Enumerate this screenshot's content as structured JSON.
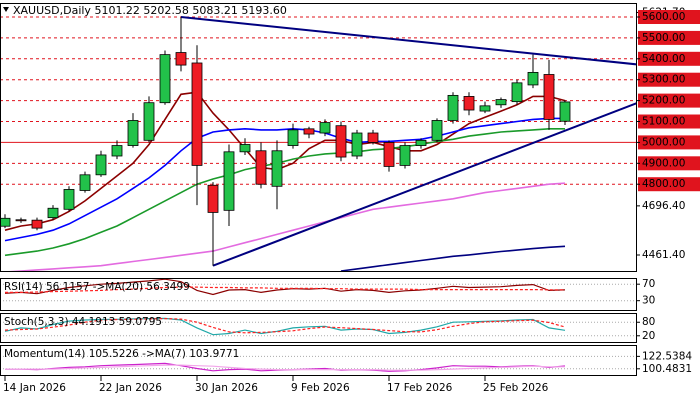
{
  "chart_data": [
    {
      "type": "candlestick",
      "title": "XAUUSD,Daily  5101.22 5202.58 5083.21 5193.60",
      "categories": [
        "14 Jan 2026",
        null,
        null,
        null,
        null,
        null,
        "22 Jan 2026",
        null,
        null,
        null,
        null,
        null,
        "30 Jan 2026",
        null,
        null,
        null,
        null,
        null,
        "9 Feb 2026",
        null,
        null,
        null,
        null,
        null,
        "17 Feb 2026",
        null,
        null,
        null,
        null,
        null,
        "25 Feb 2026",
        null,
        null,
        null,
        null,
        null
      ],
      "open": [
        4599,
        4630,
        4628,
        4640,
        4680,
        4770,
        4845,
        4935,
        4985,
        5010,
        5190,
        5430,
        5380,
        4795,
        4675,
        4955,
        4960,
        4790,
        4985,
        5065,
        5045,
        5080,
        4935,
        5045,
        5000,
        4890,
        4985,
        5010,
        5105,
        5220,
        5150,
        5180,
        5195,
        5275,
        5325,
        5101.22
      ],
      "high": [
        4656,
        4640,
        4640,
        4700,
        4790,
        4860,
        4960,
        5010,
        5140,
        5220,
        5440,
        5598,
        5465,
        4810,
        4990,
        5020,
        5000,
        5010,
        5090,
        5075,
        5110,
        5100,
        5060,
        5060,
        5010,
        5000,
        5020,
        5115,
        5240,
        5240,
        5195,
        5215,
        5300,
        5420,
        5395,
        5202.58
      ],
      "low": [
        4590,
        4615,
        4580,
        4630,
        4670,
        4760,
        4835,
        4920,
        4975,
        5000,
        5180,
        5340,
        4700,
        4410,
        4600,
        4940,
        4780,
        4680,
        4970,
        5020,
        5030,
        4910,
        4920,
        4990,
        4860,
        4875,
        4970,
        5000,
        5090,
        5130,
        5140,
        5165,
        5180,
        5260,
        5060,
        5083.21
      ],
      "close": [
        4637,
        4625,
        4590,
        4685,
        4775,
        4845,
        4940,
        4985,
        5105,
        5190,
        5420,
        5370,
        4890,
        4665,
        4955,
        4990,
        4800,
        4960,
        5060,
        5040,
        5095,
        4930,
        5045,
        5000,
        4885,
        4985,
        5010,
        5105,
        5225,
        5155,
        5175,
        5205,
        5285,
        5335,
        5110,
        5193.6
      ],
      "up_color": "#22c24a",
      "down_color": "#ee1c24",
      "series": [
        {
          "color": "#8b0000",
          "values": [
            4580,
            4600,
            4610,
            4630,
            4670,
            4720,
            4780,
            4840,
            4900,
            4990,
            5110,
            5230,
            5240,
            5140,
            5060,
            4970,
            4880,
            4870,
            4900,
            4970,
            5010,
            5010,
            4990,
            5000,
            4980,
            4960,
            4960,
            4990,
            5040,
            5090,
            5120,
            5150,
            5180,
            5220,
            5220,
            5200
          ]
        },
        {
          "color": "#0000ff",
          "values": [
            4530,
            4545,
            4560,
            4580,
            4610,
            4650,
            4690,
            4730,
            4780,
            4830,
            4890,
            4960,
            5020,
            5050,
            5060,
            5065,
            5060,
            5060,
            5065,
            5060,
            5045,
            5020,
            5000,
            5005,
            5005,
            5010,
            5015,
            5030,
            5050,
            5070,
            5080,
            5090,
            5100,
            5110,
            5115,
            5115
          ]
        },
        {
          "color": "#1a9a2a",
          "values": [
            4460,
            4470,
            4480,
            4495,
            4515,
            4540,
            4570,
            4600,
            4640,
            4680,
            4720,
            4760,
            4800,
            4825,
            4845,
            4870,
            4885,
            4900,
            4920,
            4935,
            4945,
            4950,
            4955,
            4965,
            4970,
            4980,
            4990,
            5005,
            5015,
            5030,
            5040,
            5050,
            5055,
            5060,
            5065,
            5065
          ]
        },
        {
          "color": "#e36be0",
          "values": [
            4380,
            4385,
            4390,
            4395,
            4400,
            4405,
            4410,
            4420,
            4430,
            4440,
            4450,
            4460,
            4470,
            4480,
            4500,
            4520,
            4540,
            4560,
            4580,
            4600,
            4620,
            4640,
            4660,
            4680,
            4690,
            4700,
            4710,
            4720,
            4730,
            4745,
            4760,
            4770,
            4780,
            4790,
            4800,
            4805
          ]
        },
        {
          "color": "#000080",
          "values": [
            null,
            null,
            null,
            null,
            null,
            null,
            null,
            null,
            null,
            null,
            null,
            null,
            null,
            null,
            null,
            null,
            null,
            null,
            null,
            null,
            null,
            4385,
            4395,
            4405,
            4415,
            4425,
            4435,
            4445,
            4455,
            4462,
            4470,
            4478,
            4485,
            4492,
            4498,
            4503
          ]
        }
      ],
      "trendlines": [
        {
          "color": "#000080",
          "points": [
            [
              11,
              5600
            ],
            [
              39.9,
              5370
            ]
          ]
        },
        {
          "color": "#000080",
          "points": [
            [
              13,
              4410
            ],
            [
              39.9,
              5200
            ]
          ]
        }
      ],
      "levels": [
        {
          "value": 5600,
          "style": "dashed"
        },
        {
          "value": 5500,
          "style": "dashed"
        },
        {
          "value": 5400,
          "style": "dashed"
        },
        {
          "value": 5300,
          "style": "dashed"
        },
        {
          "value": 5200,
          "style": "dashed"
        },
        {
          "value": 5100,
          "style": "dashed"
        },
        {
          "value": 5000,
          "style": "solid"
        },
        {
          "value": 4900,
          "style": "dashed"
        },
        {
          "value": 4800,
          "style": "dashed"
        }
      ],
      "level_color": "#e0141e",
      "ylim": [
        4380,
        5667
      ],
      "yticks": [
        {
          "value": 5621.7,
          "label": "5621.70"
        },
        {
          "value": 5600,
          "label": "5600.00"
        },
        {
          "value": 5500,
          "label": "5500.00"
        },
        {
          "value": 5400,
          "label": "5400.00"
        },
        {
          "value": 5300,
          "label": "5300.00"
        },
        {
          "value": 5200,
          "label": "5200.00"
        },
        {
          "value": 5100,
          "label": "5100.00"
        },
        {
          "value": 5000,
          "label": "5000.00"
        },
        {
          "value": 4900,
          "label": "4900.00"
        },
        {
          "value": 4800,
          "label": "4800.00"
        },
        {
          "value": 4696.4,
          "label": "4696.40"
        },
        {
          "value": 4461.4,
          "label": "4461.40"
        }
      ]
    },
    {
      "type": "line",
      "title": "RSI(14) 56.1157 ->MA(20) 56.3499",
      "series": [
        {
          "color": "#8b0000",
          "values": [
            48,
            50,
            47,
            55,
            62,
            66,
            70,
            72,
            75,
            78,
            82,
            76,
            55,
            45,
            56,
            57,
            50,
            56,
            59,
            58,
            60,
            53,
            57,
            55,
            50,
            54,
            56,
            60,
            65,
            62,
            63,
            64,
            67,
            69,
            55,
            56.1157
          ]
        },
        {
          "color": "#ff2020",
          "dash": true,
          "values": [
            50,
            50,
            51,
            52,
            53,
            54,
            55,
            57,
            58,
            60,
            62,
            63,
            63,
            62,
            62,
            61,
            61,
            60,
            60,
            60,
            59,
            59,
            58,
            58,
            58,
            58,
            57,
            57,
            57,
            57,
            57,
            57,
            57,
            57,
            56.5,
            56.3499
          ]
        }
      ],
      "ylim": [
        5,
        85
      ],
      "yticks": [
        70,
        30
      ]
    },
    {
      "type": "line",
      "title": "Stoch(5,3,3) 44.1913 59.0795",
      "series": [
        {
          "color": "#20a8a8",
          "values": [
            40,
            55,
            50,
            70,
            85,
            90,
            92,
            93,
            95,
            96,
            97,
            90,
            55,
            25,
            30,
            45,
            30,
            40,
            55,
            60,
            62,
            45,
            50,
            48,
            30,
            35,
            45,
            60,
            80,
            82,
            84,
            86,
            90,
            92,
            55,
            44.1913
          ]
        },
        {
          "color": "#ff2020",
          "dash": true,
          "values": [
            45,
            48,
            50,
            58,
            68,
            80,
            89,
            92,
            93,
            95,
            96,
            94,
            80,
            57,
            37,
            33,
            35,
            38,
            42,
            52,
            59,
            56,
            52,
            48,
            43,
            38,
            37,
            47,
            62,
            74,
            82,
            84,
            87,
            89,
            79,
            59.0795
          ]
        }
      ],
      "ylim": [
        -12,
        121
      ],
      "yticks": [
        80,
        20
      ]
    },
    {
      "type": "line",
      "title": "Momentum(14) 105.5226 ->MA(7) 103.9771",
      "series": [
        {
          "color": "#cc22cc",
          "values": [
            100,
            100,
            99,
            101,
            103,
            104,
            106,
            107,
            108,
            109,
            110,
            106,
            101,
            97,
            99,
            100,
            97,
            98,
            99,
            100,
            101,
            98,
            99,
            98,
            96,
            97,
            99,
            102,
            106,
            105,
            105,
            104,
            105,
            106,
            103,
            105.5226
          ]
        },
        {
          "color": "#f2a6ea",
          "values": [
            100,
            100,
            100,
            100,
            101,
            102,
            103,
            104,
            105,
            106,
            107,
            107,
            106,
            105,
            103,
            101,
            100,
            99,
            99,
            99,
            99,
            99,
            99,
            99,
            98,
            98,
            98,
            99,
            100,
            101,
            102,
            103,
            104,
            105,
            104,
            103.9771
          ]
        }
      ],
      "ylim": [
        87.7,
        142.7
      ],
      "yticks": [
        122.5384,
        100.4831
      ]
    }
  ]
}
